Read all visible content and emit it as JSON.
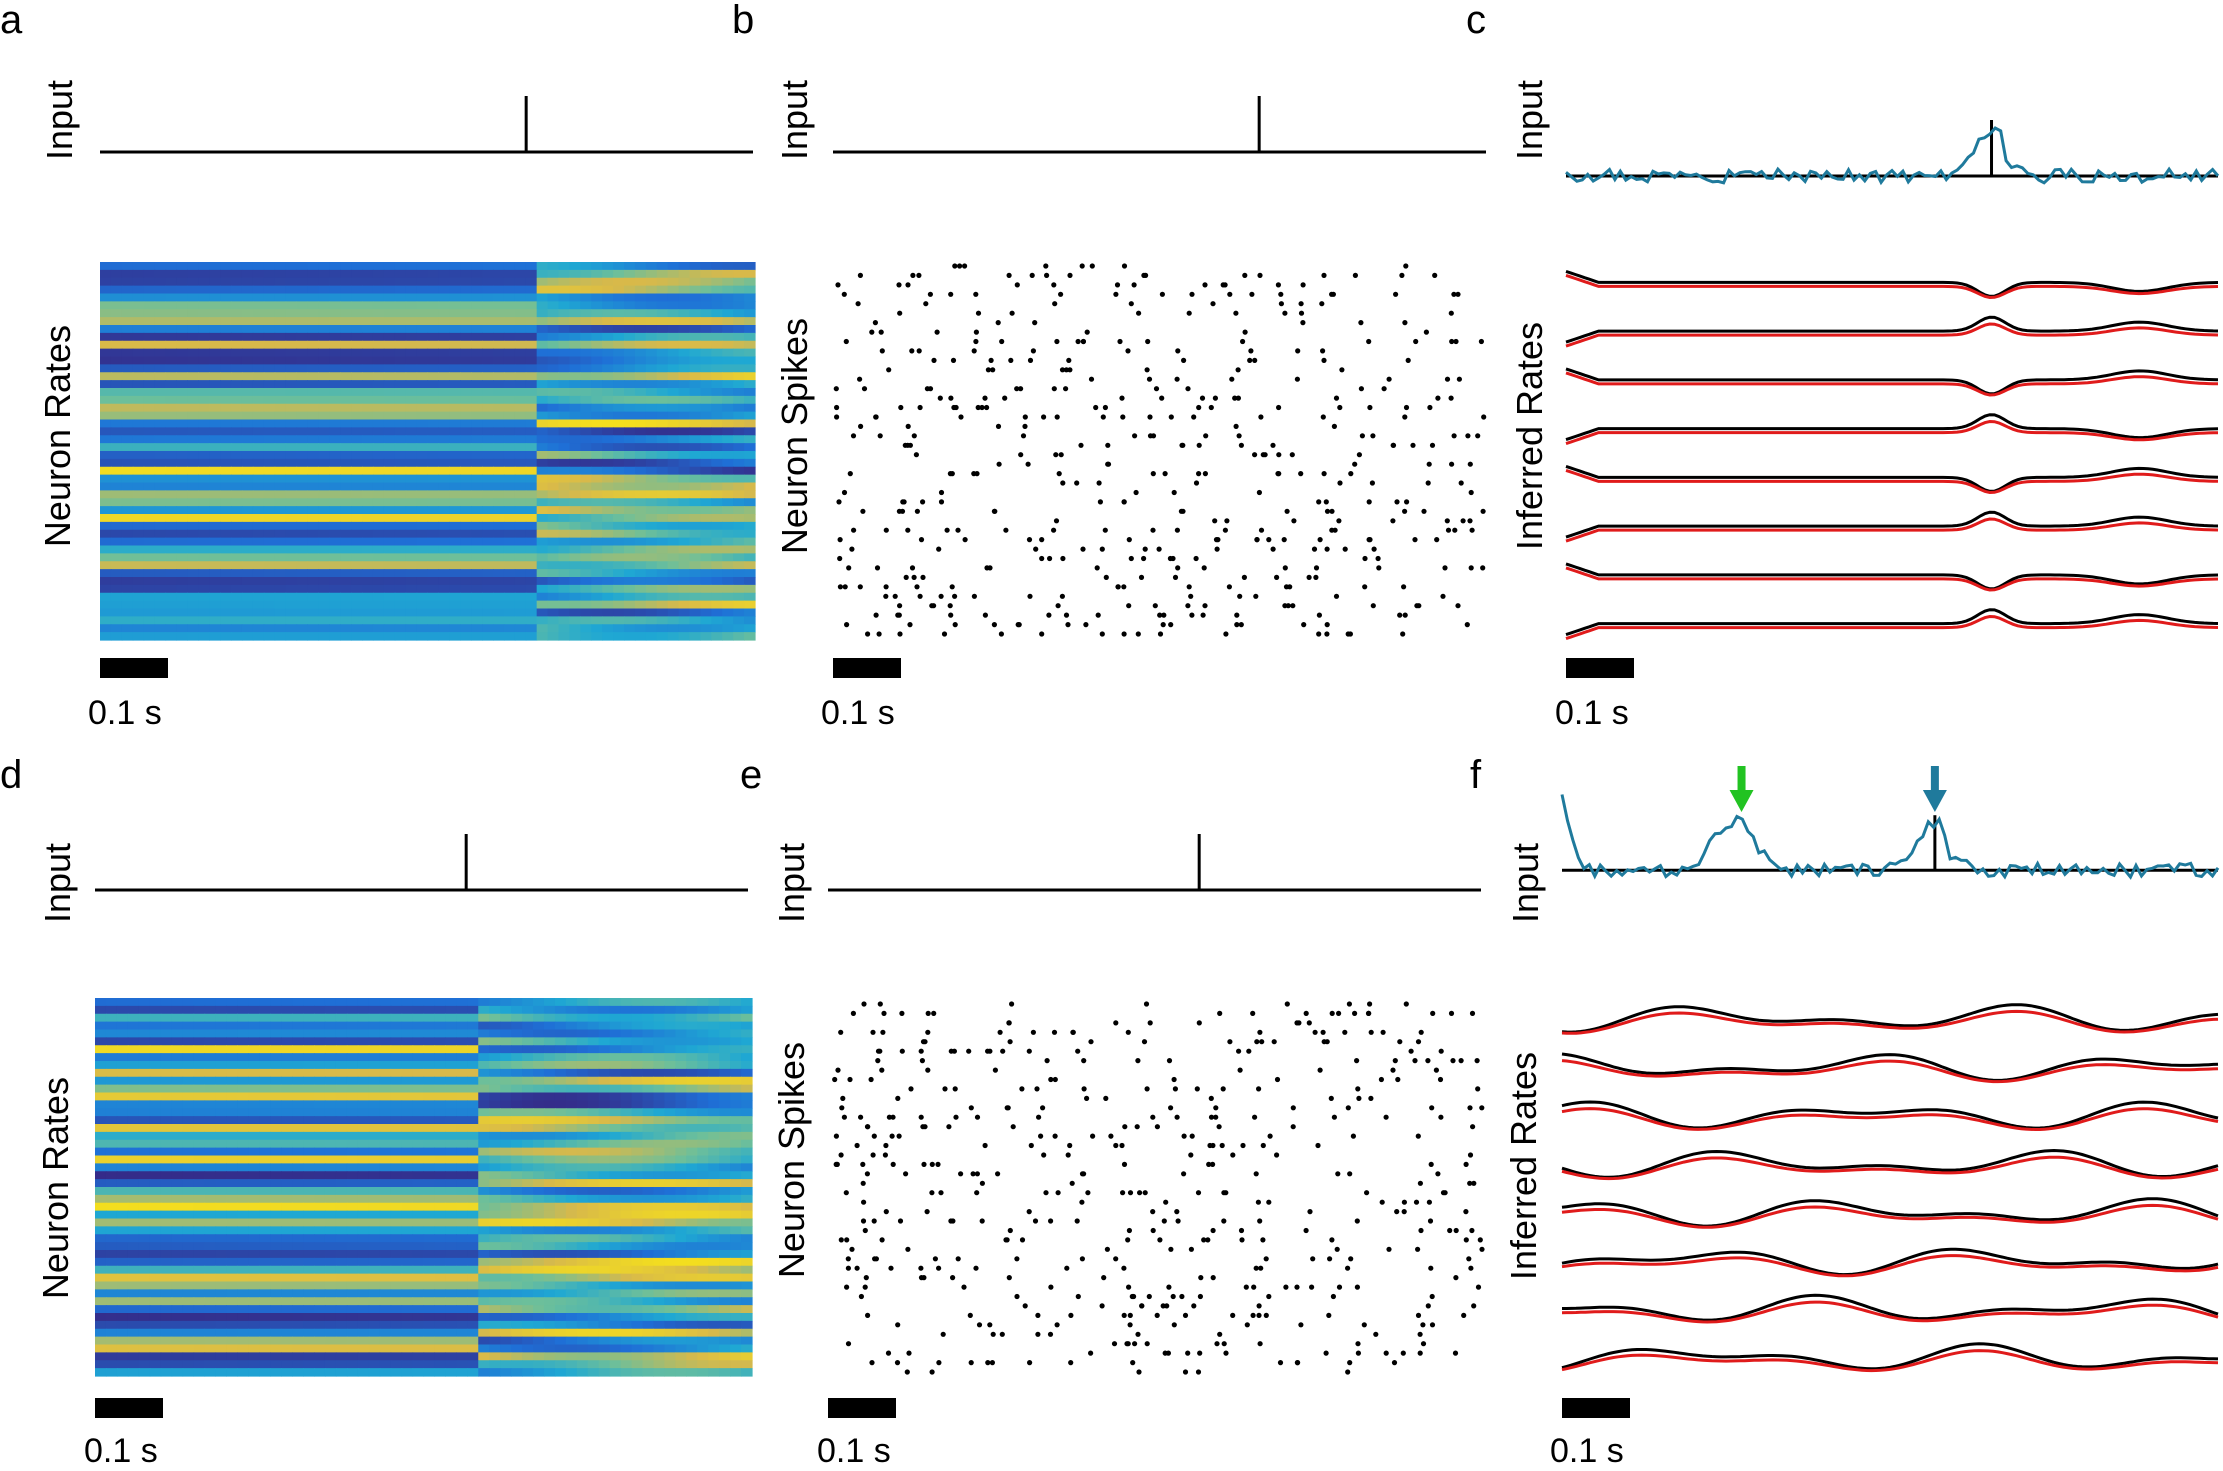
{
  "figure": {
    "panels": [
      {
        "id": "a",
        "label": "a",
        "input_label": "Input",
        "body_label": "Neuron Rates",
        "scale_label": "0.1 s",
        "kind": "heatmap"
      },
      {
        "id": "b",
        "label": "b",
        "input_label": "Input",
        "body_label": "Neuron Spikes",
        "scale_label": "0.1 s",
        "kind": "raster"
      },
      {
        "id": "c",
        "label": "c",
        "input_label": "Input",
        "body_label": "Inferred Rates",
        "scale_label": "0.1 s",
        "kind": "traces"
      },
      {
        "id": "d",
        "label": "d",
        "input_label": "Input",
        "body_label": "Neuron Rates",
        "scale_label": "0.1 s",
        "kind": "heatmap"
      },
      {
        "id": "e",
        "label": "e",
        "input_label": "Input",
        "body_label": "Neuron Spikes",
        "scale_label": "0.1 s",
        "kind": "raster"
      },
      {
        "id": "f",
        "label": "f",
        "input_label": "Input",
        "body_label": "Inferred Rates",
        "scale_label": "0.1 s",
        "kind": "traces"
      }
    ],
    "colors": {
      "true_trace": "#000000",
      "inferred_trace": "#e01b1b",
      "inferred_input": "#1f7a9c",
      "arrow_green": "#22c322",
      "arrow_blue": "#1f7a9c",
      "heat_low": "#3b2a8a",
      "heat_mid": "#2a9fd6",
      "heat_high": "#f5d21c"
    }
  },
  "chart_data": [
    {
      "type": "heatmap",
      "panel": "a",
      "title": "",
      "ylabel": "Neuron Rates",
      "time_s": [
        0,
        0.95
      ],
      "n_neurons": 50,
      "input_pulse_time_s": 0.62,
      "scale_bar_s": 0.1
    },
    {
      "type": "scatter",
      "panel": "b",
      "title": "",
      "ylabel": "Neuron Spikes",
      "time_s": [
        0,
        0.95
      ],
      "n_neurons": 50,
      "input_pulse_time_s": 0.62,
      "scale_bar_s": 0.1
    },
    {
      "type": "line",
      "panel": "c",
      "title": "",
      "ylabel": "Inferred Rates",
      "time_s": [
        0,
        0.95
      ],
      "n_traces": 8,
      "series": [
        {
          "name": "True rate"
        },
        {
          "name": "Inferred rate"
        },
        {
          "name": "Inferred input"
        }
      ],
      "input_pulse_time_s": 0.62,
      "scale_bar_s": 0.1
    },
    {
      "type": "heatmap",
      "panel": "d",
      "title": "",
      "ylabel": "Neuron Rates",
      "time_s": [
        0,
        0.95
      ],
      "n_neurons": 50,
      "input_pulse_time_s": 0.54,
      "scale_bar_s": 0.1
    },
    {
      "type": "scatter",
      "panel": "e",
      "title": "",
      "ylabel": "Neuron Spikes",
      "time_s": [
        0,
        0.95
      ],
      "n_neurons": 50,
      "input_pulse_time_s": 0.54,
      "scale_bar_s": 0.1
    },
    {
      "type": "line",
      "panel": "f",
      "title": "",
      "ylabel": "Inferred Rates",
      "time_s": [
        0,
        0.95
      ],
      "n_traces": 8,
      "series": [
        {
          "name": "True rate"
        },
        {
          "name": "Inferred rate"
        },
        {
          "name": "Inferred input"
        }
      ],
      "input_pulse_time_s": 0.54,
      "scale_bar_s": 0.1,
      "annotations": [
        {
          "type": "arrow",
          "color": "green",
          "time_s": 0.26
        },
        {
          "type": "arrow",
          "color": "blue",
          "time_s": 0.54
        }
      ]
    }
  ]
}
